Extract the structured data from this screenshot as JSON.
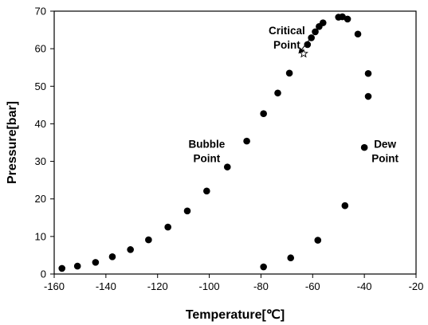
{
  "chart_data": {
    "type": "scatter",
    "title": "",
    "xlabel": "Temperature[℃]",
    "ylabel": "Pressure[bar]",
    "xlim": [
      -160,
      -20
    ],
    "ylim": [
      0,
      70
    ],
    "x_ticks": [
      -160,
      -140,
      -120,
      -100,
      -80,
      -60,
      -40,
      -20
    ],
    "y_ticks": [
      0,
      10,
      20,
      30,
      40,
      50,
      60,
      70
    ],
    "grid": false,
    "legend": "none",
    "marker_color": "#000000",
    "series": [
      {
        "points": [
          [
            -157,
            1.5
          ],
          [
            -151,
            2.1
          ],
          [
            -144,
            3.1
          ],
          [
            -137.5,
            4.6
          ],
          [
            -130.5,
            6.5
          ],
          [
            -123.5,
            9.1
          ],
          [
            -116,
            12.5
          ],
          [
            -108.5,
            16.8
          ],
          [
            -101,
            22.1
          ],
          [
            -93,
            28.5
          ],
          [
            -85.5,
            35.4
          ],
          [
            -79,
            42.7
          ],
          [
            -73.5,
            48.2
          ],
          [
            -69,
            53.5
          ],
          [
            -62,
            61.1
          ],
          [
            -60.5,
            62.9
          ],
          [
            -59,
            64.5
          ],
          [
            -57.5,
            65.9
          ],
          [
            -56,
            66.9
          ],
          [
            -50,
            68.4
          ],
          [
            -48.5,
            68.5
          ],
          [
            -46.5,
            67.9
          ],
          [
            -42.5,
            63.9
          ],
          [
            -38.5,
            53.4
          ],
          [
            -38.5,
            47.3
          ],
          [
            -40,
            33.7
          ],
          [
            -47.5,
            18.2
          ],
          [
            -58,
            9.0
          ],
          [
            -68.5,
            4.3
          ],
          [
            -79,
            1.9
          ]
        ]
      }
    ],
    "critical_point": {
      "x": -63.5,
      "y": 58.7,
      "marker": "star"
    },
    "annotations": [
      {
        "lines": [
          "Critical",
          "Point"
        ],
        "x": -70,
        "y": 63.8,
        "arrow_to": [
          -63.5,
          58.7
        ]
      },
      {
        "lines": [
          "Bubble",
          "Point"
        ],
        "x": -101,
        "y": 33.6
      },
      {
        "lines": [
          "Dew",
          "Point"
        ],
        "x": -32,
        "y": 33.6
      }
    ]
  }
}
